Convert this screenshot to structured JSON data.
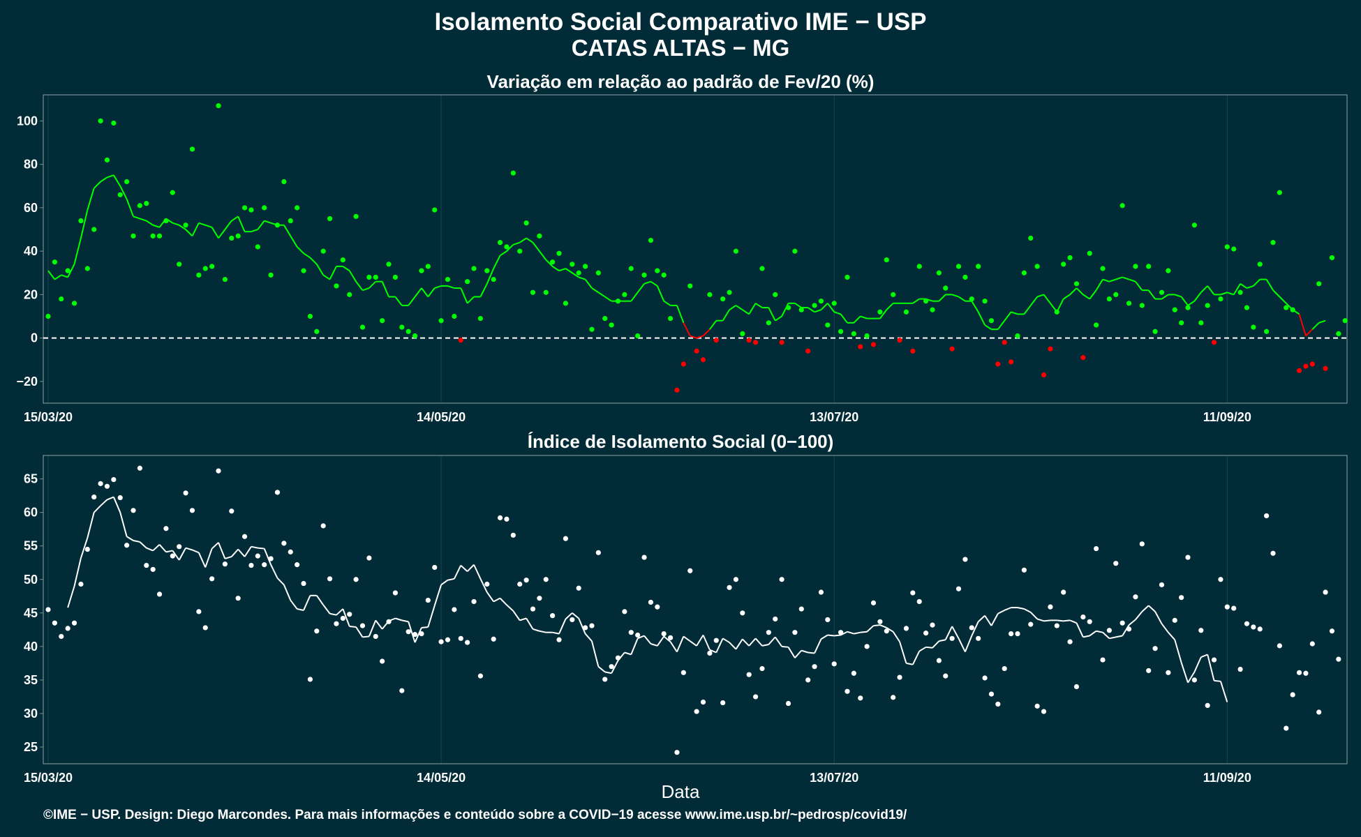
{
  "title_line1": "Isolamento Social Comparativo IME − USP",
  "title_line2": "CATAS ALTAS − MG",
  "x_axis_label": "Data",
  "footer": "©IME − USP. Design: Diego Marcondes. Para mais informações e conteúdo sobre a COVID−19 acesse www.ime.usp.br/~pedrosp/covid19/",
  "colors": {
    "background": "#012b36",
    "positive": "#00ff00",
    "negative": "#ff0000",
    "index": "#ffffff",
    "frame": "#7a8f95",
    "grid": "#1b4650"
  },
  "chart_data": [
    {
      "type": "scatter",
      "title": "Variação em relação ao padrão de Fev/20 (%)",
      "x_start": "15/03/20",
      "x_tick_labels": [
        "15/03/20",
        "14/05/20",
        "13/07/20",
        "11/09/20"
      ],
      "y_ticks": [
        -20,
        0,
        20,
        40,
        60,
        80,
        100
      ],
      "y_tick_labels": [
        "−20",
        "0",
        "20",
        "40",
        "60",
        "80",
        "100"
      ],
      "ylim": [
        -30,
        112
      ],
      "reference_line": 0,
      "legend": "none",
      "series": [
        {
          "role": "daily-points",
          "values": [
            10,
            35,
            18,
            31,
            16,
            54,
            32,
            50,
            100,
            82,
            99,
            66,
            72,
            47,
            61,
            62,
            47,
            47,
            54,
            67,
            34,
            52,
            87,
            29,
            32,
            33,
            107,
            27,
            46,
            47,
            60,
            59,
            42,
            60,
            29,
            52,
            72,
            54,
            60,
            31,
            10,
            3,
            40,
            55,
            24,
            36,
            20,
            56,
            5,
            28,
            28,
            8,
            34,
            28,
            5,
            3,
            1,
            31,
            33,
            59,
            8,
            27,
            10,
            -1,
            26,
            32,
            9,
            31,
            27,
            44,
            42,
            76,
            40,
            53,
            21,
            47,
            21,
            35,
            39,
            16,
            34,
            30,
            33,
            4,
            30,
            9,
            6,
            17,
            20,
            32,
            1,
            29,
            45,
            31,
            29,
            9,
            -24,
            -12,
            24,
            -6,
            -10,
            20,
            -1,
            18,
            21,
            40,
            2,
            -1,
            -2,
            32,
            7,
            20,
            -2,
            14,
            40,
            13,
            -6,
            15,
            17,
            6,
            16,
            3,
            28,
            2,
            -4,
            1,
            -3,
            12,
            36,
            20,
            -1,
            12,
            -6,
            33,
            17,
            13,
            30,
            23,
            -5,
            33,
            28,
            18,
            33,
            17,
            8,
            -12,
            -2,
            -11,
            1,
            30,
            46,
            33,
            -17,
            -5,
            12,
            34,
            37,
            25,
            -9,
            39,
            6,
            32,
            18,
            20,
            61,
            16,
            33,
            15,
            33,
            3,
            21,
            31,
            13,
            7,
            14,
            52,
            7,
            15,
            -2,
            18,
            42,
            41,
            21,
            14,
            5,
            34,
            3,
            44,
            67,
            14,
            13,
            -15,
            -13,
            -12,
            25,
            -14,
            37,
            2,
            8
          ]
        },
        {
          "role": "moving-average",
          "values": [
            31,
            27,
            29,
            28,
            34,
            46,
            59,
            69,
            72,
            74,
            75,
            70,
            64,
            56,
            55,
            54,
            52,
            51,
            55,
            53,
            52,
            50,
            47,
            53,
            52,
            51,
            46,
            50,
            54,
            56,
            49,
            49,
            50,
            54,
            53,
            52,
            52,
            47,
            42,
            39,
            37,
            34,
            29,
            27,
            33,
            33,
            31,
            26,
            22,
            23,
            26,
            26,
            19,
            19,
            15,
            15,
            19,
            23,
            19,
            23,
            24,
            24,
            23,
            23,
            16,
            19,
            19,
            25,
            32,
            38,
            40,
            43,
            44,
            46,
            44,
            40,
            36,
            33,
            31,
            32,
            30,
            28,
            27,
            23,
            21,
            19,
            17,
            17,
            17,
            17,
            21,
            25,
            26,
            24,
            17,
            15,
            15,
            7,
            1,
            0,
            1,
            4,
            8,
            8,
            13,
            15,
            13,
            11,
            16,
            14,
            14,
            8,
            10,
            16,
            16,
            14,
            14,
            12,
            13,
            16,
            12,
            11,
            7,
            7,
            10,
            9,
            9,
            9,
            13,
            16,
            16,
            16,
            16,
            18,
            18,
            17,
            17,
            20,
            20,
            19,
            17,
            17,
            12,
            6,
            4,
            4,
            8,
            12,
            11,
            11,
            15,
            19,
            20,
            16,
            12,
            18,
            20,
            23,
            20,
            18,
            22,
            27,
            26,
            27,
            28,
            27,
            26,
            22,
            22,
            18,
            18,
            20,
            20,
            19,
            15,
            17,
            21,
            24,
            20,
            20,
            21,
            20,
            25,
            23,
            24,
            27,
            27,
            22,
            19,
            16,
            13,
            11,
            1,
            4,
            7,
            8
          ]
        }
      ]
    },
    {
      "type": "scatter",
      "title": "Índice de Isolamento Social (0−100)",
      "x_start": "15/03/20",
      "x_tick_labels": [
        "15/03/20",
        "14/05/20",
        "13/07/20",
        "11/09/20"
      ],
      "y_ticks": [
        25,
        30,
        35,
        40,
        45,
        50,
        55,
        60,
        65
      ],
      "y_tick_labels": [
        "25",
        "30",
        "35",
        "40",
        "45",
        "50",
        "55",
        "60",
        "65"
      ],
      "ylim": [
        22.5,
        68.5
      ],
      "legend": "none",
      "series": [
        {
          "role": "daily-points",
          "values": [
            45.5,
            43.5,
            41.5,
            42.7,
            43.5,
            49.3,
            54.5,
            62.3,
            64.3,
            63.9,
            64.9,
            62.2,
            55.1,
            60.3,
            66.6,
            52.1,
            51.5,
            47.8,
            57.6,
            53.5,
            54.9,
            62.9,
            60.3,
            45.2,
            42.8,
            50.1,
            66.2,
            52.3,
            60.2,
            47.2,
            56.4,
            52.1,
            53.5,
            52.2,
            53.1,
            63,
            55.4,
            54.1,
            52.2,
            49.4,
            35.1,
            42.3,
            58,
            50.1,
            43.4,
            44.2,
            44.8,
            50,
            43.1,
            53.2,
            41.5,
            37.8,
            43.7,
            48,
            33.4,
            42.2,
            41.8,
            41.9,
            46.9,
            51.8,
            40.7,
            41,
            45.5,
            41.2,
            40.6,
            46.7,
            35.6,
            49.3,
            41.1,
            59.2,
            59,
            56.6,
            49.3,
            49.9,
            45.6,
            47.2,
            50,
            44.6,
            41,
            56.1,
            44,
            48.7,
            42.8,
            43.1,
            54,
            35.1,
            37,
            38.3,
            45.2,
            42.1,
            41.7,
            53.3,
            46.6,
            45.9,
            41.9,
            41.3,
            24.2,
            36.1,
            51.3,
            30.3,
            31.7,
            39,
            40.9,
            31.6,
            48.8,
            50,
            45,
            35.8,
            32.5,
            36.7,
            42.1,
            44.1,
            50,
            31.5,
            42.1,
            45.6,
            35,
            37,
            48.1,
            44,
            37.4,
            42.1,
            33.3,
            36,
            32.3,
            40,
            46.5,
            43.7,
            42.3,
            32.4,
            35.4,
            42.7,
            48,
            46.7,
            42,
            43.2,
            37.9,
            35.6,
            41.2,
            48.6,
            53,
            42.8,
            41.2,
            35.3,
            32.9,
            31.4,
            36.7,
            41.9,
            41.9,
            51.4,
            43.3,
            31.1,
            30.3,
            45.9,
            43.1,
            48.1,
            40.7,
            34,
            44.4,
            43.7,
            54.6,
            38,
            42.4,
            52.4,
            43.5,
            42.6,
            47.4,
            55.3,
            36.4,
            39.7,
            49.2,
            36.1,
            43.9,
            47.3,
            53.3,
            35,
            42.4,
            31.2,
            38,
            50,
            45.9,
            45.7,
            36.6,
            43.4,
            42.9,
            42.6,
            59.5,
            53.9,
            40.1,
            27.8,
            32.8,
            36.1,
            36,
            40.4,
            30.2,
            48.1,
            42.3,
            38.1
          ]
        },
        {
          "role": "moving-average",
          "values": [
            null,
            null,
            null,
            45.8,
            49,
            53.2,
            56.2,
            60,
            61,
            61.9,
            62.3,
            60,
            56.4,
            55.8,
            55.6,
            54.7,
            54.3,
            55.2,
            54.1,
            54.3,
            52.9,
            54.7,
            54.4,
            54,
            51.8,
            54.6,
            55.5,
            53.1,
            53.4,
            54.5,
            53.4,
            54.9,
            54.7,
            54.6,
            52.2,
            50.2,
            49.2,
            46.9,
            45.6,
            45.4,
            47.6,
            47.6,
            46.2,
            44.9,
            44.7,
            45.6,
            43,
            42.9,
            41.4,
            41.5,
            43.9,
            42.6,
            43.8,
            44.2,
            43.9,
            43.7,
            40.6,
            42.8,
            42.9,
            46.1,
            49.2,
            49.9,
            50.1,
            52.1,
            51.2,
            52.2,
            50.1,
            48.1,
            46.7,
            47.2,
            46.2,
            45.3,
            43.9,
            44.2,
            42.6,
            42.3,
            42.1,
            42.1,
            41.9,
            44.1,
            45,
            44.2,
            41.9,
            40.8,
            37,
            36.2,
            36,
            37.9,
            39.1,
            38.8,
            41.2,
            41.6,
            40.4,
            40.1,
            41.5,
            40.7,
            39.2,
            41.5,
            40.8,
            40.1,
            41.7,
            39.5,
            39.1,
            41.2,
            40.6,
            39.6,
            41.1,
            40.1,
            41.2,
            40.1,
            40.3,
            41.4,
            40,
            39.9,
            38.3,
            39.4,
            39.1,
            39,
            41.1,
            41.7,
            41.6,
            41.7,
            42.2,
            41.9,
            42.1,
            42.2,
            43.1,
            43.2,
            42.8,
            42.2,
            40.7,
            37.5,
            37.3,
            39.3,
            39.9,
            39.8,
            40.8,
            41,
            43,
            41.2,
            39.2,
            41.6,
            43.7,
            44.6,
            43.1,
            44.9,
            45.4,
            45.8,
            45.8,
            45.6,
            45.1,
            44.1,
            43.8,
            43.9,
            43.9,
            43.8,
            43.9,
            43.5,
            41.4,
            41.6,
            42.3,
            42.1,
            41.2,
            41.4,
            41.6,
            43.2,
            44,
            45.2,
            46.1,
            45.2,
            43.4,
            42.1,
            41,
            37.6,
            34.6,
            36.2,
            38.4,
            38.8,
            34.9,
            34.8,
            31.7
          ]
        }
      ]
    }
  ]
}
